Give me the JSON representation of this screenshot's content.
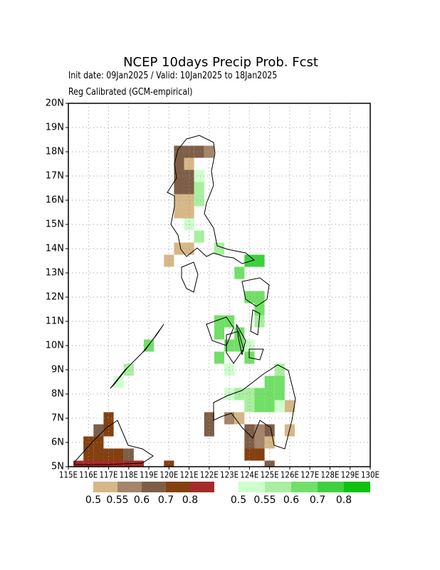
{
  "chart_data": {
    "type": "gridmap",
    "title": "NCEP 10days Precip Prob. Fcst",
    "subtitle": "Init date: 09Jan2025 / Valid: 10Jan2025 to 18Jan2025",
    "note": "Reg Calibrated (GCM-empirical)",
    "xlim": [
      115,
      130
    ],
    "ylim": [
      5,
      20
    ],
    "xticks": [
      {
        "value": 115,
        "label": "115E"
      },
      {
        "value": 116,
        "label": "116E"
      },
      {
        "value": 117,
        "label": "117E"
      },
      {
        "value": 118,
        "label": "118E"
      },
      {
        "value": 119,
        "label": "119E"
      },
      {
        "value": 120,
        "label": "120E"
      },
      {
        "value": 121,
        "label": "121E"
      },
      {
        "value": 122,
        "label": "122E"
      },
      {
        "value": 123,
        "label": "123E"
      },
      {
        "value": 124,
        "label": "124E"
      },
      {
        "value": 125,
        "label": "125E"
      },
      {
        "value": 126,
        "label": "126E"
      },
      {
        "value": 127,
        "label": "127E"
      },
      {
        "value": 128,
        "label": "128E"
      },
      {
        "value": 129,
        "label": "129E"
      },
      {
        "value": 130,
        "label": "130E"
      }
    ],
    "yticks": [
      {
        "value": 5,
        "label": "5N"
      },
      {
        "value": 6,
        "label": "6N"
      },
      {
        "value": 7,
        "label": "7N"
      },
      {
        "value": 8,
        "label": "8N"
      },
      {
        "value": 9,
        "label": "9N"
      },
      {
        "value": 10,
        "label": "10N"
      },
      {
        "value": 11,
        "label": "11N"
      },
      {
        "value": 12,
        "label": "12N"
      },
      {
        "value": 13,
        "label": "13N"
      },
      {
        "value": 14,
        "label": "14N"
      },
      {
        "value": 15,
        "label": "15N"
      },
      {
        "value": 16,
        "label": "16N"
      },
      {
        "value": 17,
        "label": "17N"
      },
      {
        "value": 18,
        "label": "18N"
      },
      {
        "value": 19,
        "label": "19N"
      },
      {
        "value": 20,
        "label": "20N"
      }
    ],
    "grid": true,
    "cell": 0.5,
    "series": [
      {
        "levels": [
          0.5,
          0.55,
          0.6,
          0.7,
          0.8
        ],
        "colors": [
          "#d6b888",
          "#a4846a",
          "#7e5e46",
          "#84400e",
          "#a52a2a"
        ],
        "x": [
          120.5,
          121.0,
          121.5,
          122.0,
          120.5,
          121.0,
          120.5,
          121.0,
          120.5,
          121.0,
          120.5,
          121.0,
          120.5,
          121.0,
          120.5,
          121.0,
          120.0,
          122.0,
          122.0,
          123.0,
          123.5,
          124.0,
          124.5,
          125.0,
          124.0,
          124.5,
          125.0,
          124.0,
          124.5,
          125.0,
          126.0,
          126.0,
          117.0,
          116.5,
          117.0,
          116.0,
          116.5,
          116.0,
          116.5,
          117.0,
          117.5,
          118.0,
          115.5,
          116.0,
          116.5,
          117.0,
          117.5,
          118.0,
          118.5,
          120.0
        ],
        "y": [
          18.0,
          18.0,
          18.0,
          18.0,
          17.5,
          17.5,
          17.0,
          17.0,
          16.5,
          16.5,
          16.0,
          16.0,
          15.5,
          15.5,
          14.0,
          14.0,
          13.5,
          7.0,
          6.5,
          7.0,
          7.0,
          6.5,
          6.5,
          6.5,
          6.0,
          6.0,
          6.0,
          5.5,
          5.5,
          5.0,
          6.5,
          7.5,
          7.0,
          6.5,
          6.5,
          6.0,
          6.0,
          5.5,
          5.5,
          5.5,
          5.5,
          5.5,
          5.0,
          5.0,
          5.0,
          5.0,
          5.0,
          5.0,
          5.0,
          5.0
        ],
        "values": [
          0.6,
          0.6,
          0.6,
          0.55,
          0.6,
          0.5,
          0.6,
          0.6,
          0.6,
          0.6,
          0.5,
          0.5,
          0.5,
          0.5,
          0.5,
          0.5,
          0.5,
          0.6,
          0.6,
          0.55,
          0.5,
          0.6,
          0.55,
          0.6,
          0.6,
          0.55,
          0.5,
          0.7,
          0.7,
          0.6,
          0.5,
          0.5,
          0.7,
          0.6,
          0.7,
          0.7,
          0.7,
          0.7,
          0.7,
          0.7,
          0.7,
          0.6,
          0.8,
          0.8,
          0.8,
          0.8,
          0.8,
          0.8,
          0.8,
          0.7
        ]
      },
      {
        "levels": [
          0.5,
          0.55,
          0.6,
          0.7,
          0.8
        ],
        "colors": [
          "#ccffcc",
          "#a8f0a0",
          "#72e068",
          "#3ed03e",
          "#10c010"
        ],
        "x": [
          121.5,
          121.5,
          121.5,
          121.0,
          121.5,
          122.5,
          124.0,
          124.5,
          123.5,
          124.0,
          124.5,
          124.5,
          122.5,
          123.0,
          124.5,
          122.5,
          123.5,
          123.0,
          123.5,
          124.0,
          122.5,
          124.0,
          123.0,
          125.5,
          125.0,
          125.5,
          123.0,
          123.5,
          124.0,
          124.5,
          125.0,
          125.5,
          124.0,
          124.5,
          125.0,
          125.5,
          119.0,
          118.0,
          117.5
        ],
        "y": [
          17.0,
          16.5,
          16.0,
          15.0,
          14.5,
          14.0,
          13.5,
          13.5,
          13.0,
          12.0,
          12.0,
          11.5,
          11.0,
          11.0,
          11.0,
          10.5,
          10.5,
          10.0,
          10.0,
          10.0,
          9.5,
          9.5,
          9.0,
          9.0,
          8.5,
          8.5,
          8.0,
          8.0,
          8.0,
          8.0,
          8.0,
          8.0,
          7.5,
          7.5,
          7.5,
          7.5,
          10.0,
          9.0,
          8.5
        ],
        "values": [
          0.5,
          0.55,
          0.55,
          0.5,
          0.55,
          0.55,
          0.7,
          0.7,
          0.6,
          0.6,
          0.6,
          0.6,
          0.6,
          0.6,
          0.55,
          0.6,
          0.6,
          0.6,
          0.6,
          0.5,
          0.6,
          0.6,
          0.5,
          0.55,
          0.6,
          0.6,
          0.5,
          0.55,
          0.55,
          0.6,
          0.6,
          0.6,
          0.55,
          0.6,
          0.6,
          0.5,
          0.6,
          0.55,
          0.5
        ]
      }
    ]
  }
}
